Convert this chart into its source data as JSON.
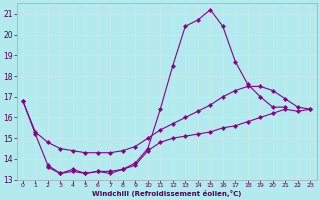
{
  "xlabel": "Windchill (Refroidissement éolien,°C)",
  "bg_color": "#b2eaed",
  "line_color": "#880088",
  "grid_color": "#c8e8eb",
  "xmin": -0.5,
  "xmax": 23.5,
  "ymin": 13,
  "ymax": 21.5,
  "yticks": [
    13,
    14,
    15,
    16,
    17,
    18,
    19,
    20,
    21
  ],
  "xticks": [
    0,
    1,
    2,
    3,
    4,
    5,
    6,
    7,
    8,
    9,
    10,
    11,
    12,
    13,
    14,
    15,
    16,
    17,
    18,
    19,
    20,
    21,
    22,
    23
  ],
  "line1_x": [
    0,
    1,
    2,
    3,
    4,
    5,
    6,
    7,
    8,
    9,
    10,
    11,
    12,
    13,
    14,
    15,
    16,
    17,
    18,
    19,
    20,
    21
  ],
  "line1_y": [
    16.8,
    15.2,
    13.7,
    13.3,
    13.5,
    13.3,
    13.4,
    13.4,
    13.5,
    13.8,
    14.5,
    16.4,
    18.5,
    20.4,
    20.7,
    21.2,
    20.4,
    18.7,
    17.6,
    17.0,
    16.5,
    16.5
  ],
  "line2_x": [
    0,
    1,
    2,
    3,
    4,
    5,
    6,
    7,
    8,
    9,
    10,
    11,
    12,
    13,
    14,
    15,
    16,
    17,
    18,
    19,
    20,
    21,
    22,
    23
  ],
  "line2_y": [
    16.8,
    15.3,
    14.8,
    14.5,
    14.4,
    14.3,
    14.3,
    14.3,
    14.4,
    14.6,
    15.0,
    15.4,
    15.7,
    16.0,
    16.3,
    16.6,
    17.0,
    17.3,
    17.5,
    17.5,
    17.3,
    16.9,
    16.5,
    16.4
  ],
  "line3_x": [
    2,
    3,
    4,
    5,
    6,
    7,
    8,
    9,
    10,
    11,
    12,
    13,
    14,
    15,
    16,
    17,
    18,
    19,
    20,
    21,
    22,
    23
  ],
  "line3_y": [
    13.6,
    13.3,
    13.4,
    13.3,
    13.4,
    13.3,
    13.5,
    13.7,
    14.4,
    14.8,
    15.0,
    15.1,
    15.2,
    15.3,
    15.5,
    15.6,
    15.8,
    16.0,
    16.2,
    16.4,
    16.3,
    16.4
  ],
  "marker": "D",
  "markersize": 2.2,
  "linewidth": 0.8
}
